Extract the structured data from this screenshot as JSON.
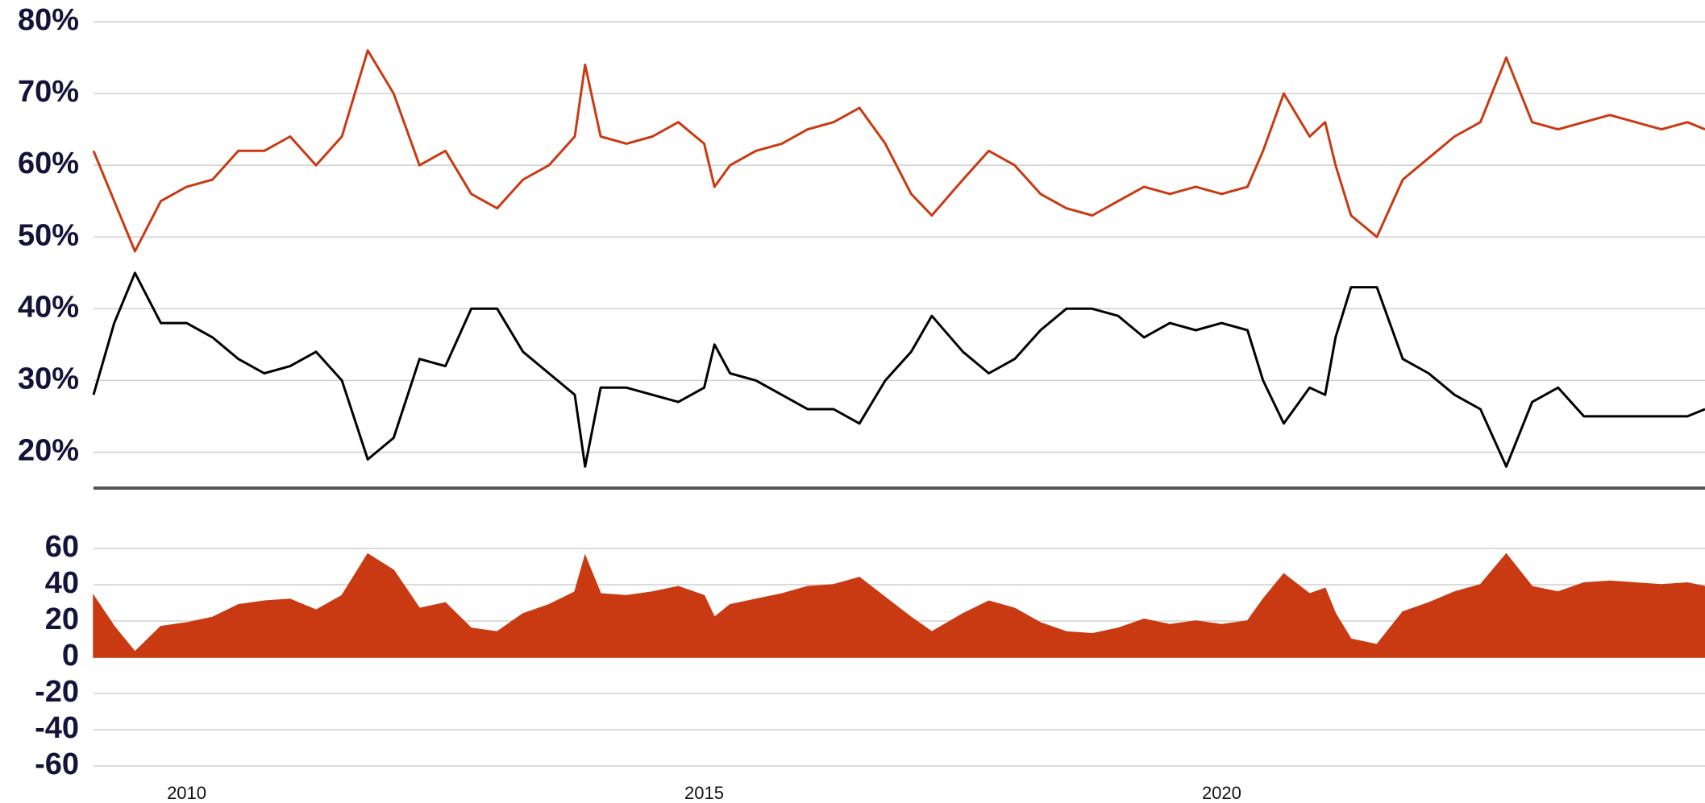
{
  "chart_data": [
    {
      "type": "line",
      "x": [
        2009.1,
        2009.3,
        2009.5,
        2009.75,
        2010,
        2010.25,
        2010.5,
        2010.75,
        2011,
        2011.25,
        2011.5,
        2011.75,
        2012,
        2012.25,
        2012.5,
        2012.75,
        2013,
        2013.25,
        2013.5,
        2013.75,
        2013.85,
        2014,
        2014.25,
        2014.5,
        2014.75,
        2015,
        2015.1,
        2015.25,
        2015.5,
        2015.75,
        2016,
        2016.25,
        2016.5,
        2016.75,
        2017,
        2017.2,
        2017.5,
        2017.75,
        2018,
        2018.25,
        2018.5,
        2018.75,
        2019,
        2019.25,
        2019.5,
        2019.75,
        2020,
        2020.25,
        2020.4,
        2020.6,
        2020.85,
        2021,
        2021.1,
        2021.25,
        2021.5,
        2021.75,
        2022,
        2022.25,
        2022.5,
        2022.75,
        2023,
        2023.25,
        2023.5,
        2023.75,
        2024,
        2024.25,
        2024.5,
        2024.67
      ],
      "series": [
        {
          "color": "#c93a13",
          "values": [
            62,
            55,
            48,
            55,
            57,
            58,
            62,
            62,
            64,
            60,
            64,
            76,
            70,
            60,
            62,
            56,
            54,
            58,
            60,
            64,
            74,
            64,
            63,
            64,
            66,
            63,
            57,
            60,
            62,
            63,
            65,
            66,
            68,
            63,
            56,
            53,
            58,
            62,
            60,
            56,
            54,
            53,
            55,
            57,
            56,
            57,
            56,
            57,
            62,
            70,
            64,
            66,
            60,
            53,
            50,
            58,
            61,
            64,
            66,
            75,
            66,
            65,
            66,
            67,
            66,
            65,
            66,
            65
          ]
        },
        {
          "color": "#000000",
          "values": [
            28,
            38,
            45,
            38,
            38,
            36,
            33,
            31,
            32,
            34,
            30,
            19,
            22,
            33,
            32,
            40,
            40,
            34,
            31,
            28,
            18,
            29,
            29,
            28,
            27,
            29,
            35,
            31,
            30,
            28,
            26,
            26,
            24,
            30,
            34,
            39,
            34,
            31,
            33,
            37,
            40,
            40,
            39,
            36,
            38,
            37,
            38,
            37,
            30,
            24,
            29,
            28,
            36,
            43,
            43,
            33,
            31,
            28,
            26,
            18,
            27,
            29,
            25,
            25,
            25,
            25,
            25,
            26
          ]
        }
      ],
      "xlim": [
        2009.1,
        2024.67
      ],
      "ylim": [
        15,
        80
      ],
      "yticks": [
        {
          "value": 20,
          "label": "20%"
        },
        {
          "value": 30,
          "label": "30%"
        },
        {
          "value": 40,
          "label": "40%"
        },
        {
          "value": 50,
          "label": "50%"
        },
        {
          "value": 60,
          "label": "60%"
        },
        {
          "value": 70,
          "label": "70%"
        },
        {
          "value": 80,
          "label": "80%"
        }
      ],
      "grid": true
    },
    {
      "type": "area",
      "x": [
        2009.1,
        2009.3,
        2009.5,
        2009.75,
        2010,
        2010.25,
        2010.5,
        2010.75,
        2011,
        2011.25,
        2011.5,
        2011.75,
        2012,
        2012.25,
        2012.5,
        2012.75,
        2013,
        2013.25,
        2013.5,
        2013.75,
        2013.85,
        2014,
        2014.25,
        2014.5,
        2014.75,
        2015,
        2015.1,
        2015.25,
        2015.5,
        2015.75,
        2016,
        2016.25,
        2016.5,
        2016.75,
        2017,
        2017.2,
        2017.5,
        2017.75,
        2018,
        2018.25,
        2018.5,
        2018.75,
        2019,
        2019.25,
        2019.5,
        2019.75,
        2020,
        2020.25,
        2020.4,
        2020.6,
        2020.85,
        2021,
        2021.1,
        2021.25,
        2021.5,
        2021.75,
        2022,
        2022.25,
        2022.5,
        2022.75,
        2023,
        2023.25,
        2023.5,
        2023.75,
        2024,
        2024.25,
        2024.5,
        2024.67
      ],
      "values": [
        34,
        17,
        3,
        17,
        19,
        22,
        29,
        31,
        32,
        26,
        34,
        57,
        48,
        27,
        30,
        16,
        14,
        24,
        29,
        36,
        56,
        35,
        34,
        36,
        39,
        34,
        22,
        29,
        32,
        35,
        39,
        40,
        44,
        33,
        22,
        14,
        24,
        31,
        27,
        19,
        14,
        13,
        16,
        21,
        18,
        20,
        18,
        20,
        32,
        46,
        35,
        38,
        24,
        10,
        7,
        25,
        30,
        36,
        40,
        57,
        39,
        36,
        41,
        42,
        41,
        40,
        41,
        39
      ],
      "color": "#c93a13",
      "xlim": [
        2009.1,
        2024.67
      ],
      "xticks": [
        2010,
        2015,
        2020
      ],
      "ylim": [
        -60,
        60
      ],
      "yticks": [
        -60,
        -40,
        -20,
        0,
        20,
        40,
        60
      ],
      "grid": true
    }
  ]
}
